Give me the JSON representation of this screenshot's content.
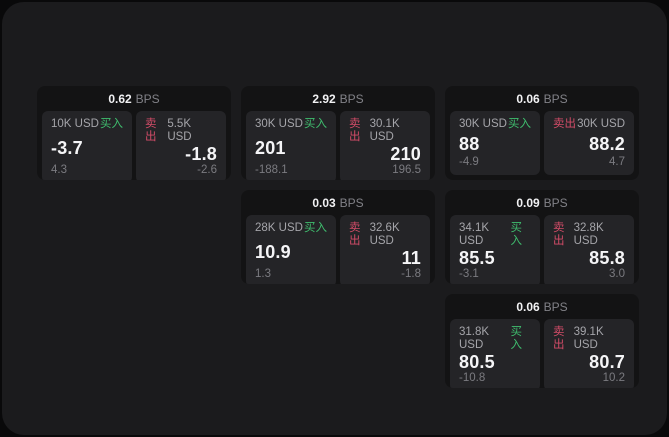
{
  "labels": {
    "bps_unit": "BPS",
    "buy": "买入",
    "sell": "卖出"
  },
  "colors": {
    "buy": "#3fbd6e",
    "sell": "#d34c68",
    "panel_bg": "#1b1b1d",
    "card_bg": "#131314",
    "subpanel_bg": "#242427"
  },
  "cards": [
    {
      "bps": "0.62",
      "grid": {
        "row": 1,
        "col": 1
      },
      "buy": {
        "size": "10K USD",
        "main": "-3.7",
        "sub": "4.3"
      },
      "sell": {
        "size": "5.5K USD",
        "main": "-1.8",
        "sub": "-2.6"
      }
    },
    {
      "bps": "2.92",
      "grid": {
        "row": 1,
        "col": 2
      },
      "buy": {
        "size": "30K USD",
        "main": "201",
        "sub": "-188.1"
      },
      "sell": {
        "size": "30.1K USD",
        "main": "210",
        "sub": "196.5"
      }
    },
    {
      "bps": "0.06",
      "grid": {
        "row": 1,
        "col": 3
      },
      "buy": {
        "size": "30K USD",
        "main": "88",
        "sub": "-4.9"
      },
      "sell": {
        "size": "30K USD",
        "main": "88.2",
        "sub": "4.7"
      }
    },
    {
      "bps": "0.03",
      "grid": {
        "row": 2,
        "col": 2
      },
      "buy": {
        "size": "28K USD",
        "main": "10.9",
        "sub": "1.3"
      },
      "sell": {
        "size": "32.6K USD",
        "main": "11",
        "sub": "-1.8"
      }
    },
    {
      "bps": "0.09",
      "grid": {
        "row": 2,
        "col": 3
      },
      "buy": {
        "size": "34.1K USD",
        "main": "85.5",
        "sub": "-3.1"
      },
      "sell": {
        "size": "32.8K USD",
        "main": "85.8",
        "sub": "3.0"
      }
    },
    {
      "bps": "0.06",
      "grid": {
        "row": 3,
        "col": 3
      },
      "buy": {
        "size": "31.8K USD",
        "main": "80.5",
        "sub": "-10.8"
      },
      "sell": {
        "size": "39.1K USD",
        "main": "80.7",
        "sub": "10.2"
      }
    }
  ]
}
